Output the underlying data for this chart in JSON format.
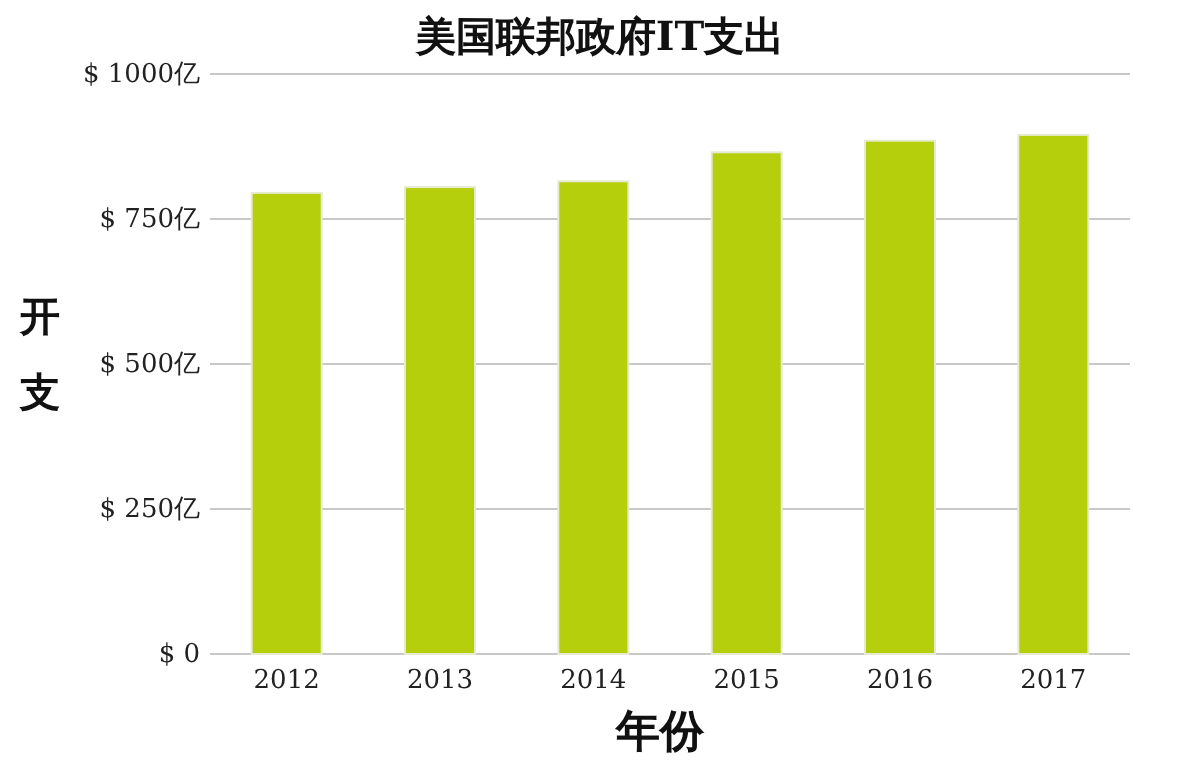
{
  "chart_data": {
    "type": "bar",
    "title": "美国联邦政府IT支出",
    "xlabel": "年份",
    "ylabel": "开支",
    "categories": [
      "2012",
      "2013",
      "2014",
      "2015",
      "2016",
      "2017"
    ],
    "values": [
      795,
      805,
      815,
      865,
      885,
      895
    ],
    "color": "#b5cf0c",
    "ylim": [
      0,
      1000
    ],
    "yticks": [
      {
        "value": 0,
        "label": "$ 0"
      },
      {
        "value": 250,
        "label": "$ 250亿"
      },
      {
        "value": 500,
        "label": "$ 500亿"
      },
      {
        "value": 750,
        "label": "$ 750亿"
      },
      {
        "value": 1000,
        "label": "$ 1000亿"
      }
    ],
    "grid": "y"
  }
}
